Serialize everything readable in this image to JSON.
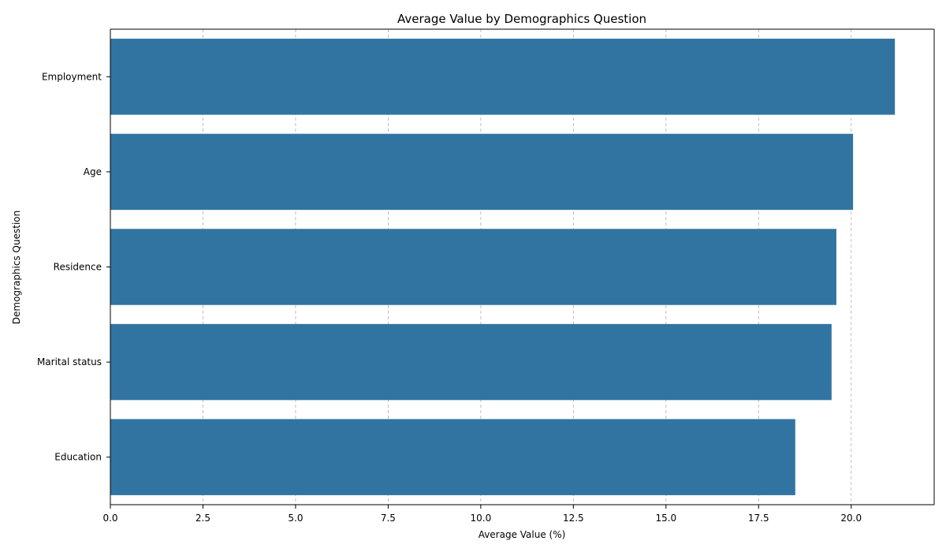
{
  "chart_data": {
    "type": "bar",
    "orientation": "horizontal",
    "title": "Average Value by Demographics Question",
    "xlabel": "Average Value (%)",
    "ylabel": "Demographics Question",
    "categories": [
      "Employment",
      "Age",
      "Residence",
      "Marital status",
      "Education"
    ],
    "values": [
      21.18,
      20.05,
      19.6,
      19.47,
      18.49
    ],
    "xlim": [
      0,
      22.24
    ],
    "xticks": [
      0.0,
      2.5,
      5.0,
      7.5,
      10.0,
      12.5,
      15.0,
      17.5,
      20.0
    ],
    "xtick_labels": [
      "0.0",
      "2.5",
      "5.0",
      "7.5",
      "10.0",
      "12.5",
      "15.0",
      "17.5",
      "20.0"
    ],
    "grid": "x-axis dashed",
    "bar_color": "#3274a1"
  }
}
